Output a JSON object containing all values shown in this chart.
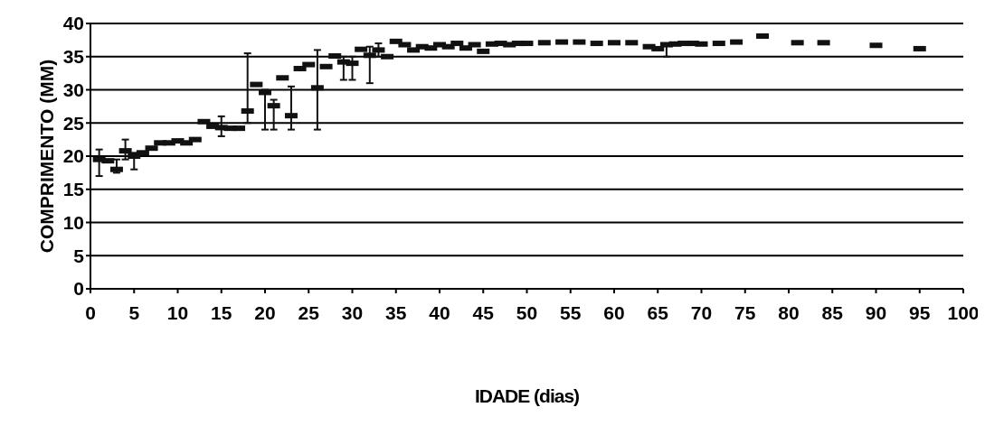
{
  "chart_data": {
    "type": "scatter",
    "xlabel": "IDADE (dias)",
    "ylabel": "COMPRIMENTO (MM)",
    "x": [
      1,
      2,
      3,
      4,
      5,
      6,
      7,
      8,
      9,
      10,
      11,
      12,
      13,
      14,
      15,
      16,
      17,
      18,
      19,
      20,
      21,
      22,
      23,
      24,
      25,
      26,
      27,
      28,
      29,
      30,
      31,
      32,
      33,
      34,
      35,
      36,
      37,
      38,
      39,
      40,
      41,
      42,
      43,
      44,
      45,
      46,
      47,
      48,
      49,
      50,
      52,
      54,
      56,
      58,
      60,
      62,
      64,
      65,
      66,
      67,
      68,
      69,
      70,
      72,
      74,
      77,
      81,
      84,
      90,
      95
    ],
    "series": [
      {
        "color": "#111111",
        "values": [
          19.5,
          19.3,
          18,
          20.8,
          20,
          20.5,
          21.2,
          22,
          22,
          22.3,
          22,
          22.5,
          25.2,
          24.5,
          24.3,
          24.2,
          24.2,
          26.8,
          30.8,
          29.6,
          27.6,
          31.8,
          26.1,
          33.2,
          33.8,
          30.3,
          33.5,
          35.1,
          34.2,
          34,
          36.1,
          35.2,
          36,
          35,
          37.3,
          36.8,
          36,
          36.5,
          36.3,
          36.8,
          36.5,
          37,
          36.3,
          36.8,
          35.8,
          36.9,
          37,
          36.8,
          37,
          37,
          37.1,
          37.2,
          37.2,
          37,
          37.1,
          37.1,
          36.5,
          36.2,
          36.8,
          36.9,
          37,
          37,
          36.9,
          37,
          37.2,
          38.1,
          37.1,
          37.1,
          36.7,
          36.2
        ],
        "errors": [
          [
            17,
            21
          ],
          null,
          [
            17.5,
            19.5
          ],
          [
            19.5,
            22.5
          ],
          [
            18,
            20.5
          ],
          null,
          null,
          null,
          null,
          null,
          null,
          null,
          null,
          null,
          [
            23,
            26
          ],
          null,
          null,
          [
            25,
            35.5
          ],
          null,
          [
            24,
            30
          ],
          [
            24,
            28.5
          ],
          null,
          [
            24,
            30.5
          ],
          null,
          null,
          [
            24,
            36
          ],
          null,
          null,
          [
            31.5,
            35
          ],
          [
            31.5,
            35
          ],
          null,
          [
            31,
            36.5
          ],
          [
            35,
            37
          ],
          null,
          null,
          null,
          null,
          null,
          null,
          null,
          null,
          null,
          null,
          null,
          null,
          null,
          null,
          null,
          null,
          null,
          null,
          null,
          null,
          null,
          null,
          null,
          null,
          null,
          [
            35,
            37
          ],
          null,
          null,
          null,
          null,
          null,
          null,
          null,
          null,
          null,
          null,
          null
        ]
      }
    ],
    "xlim": [
      0,
      100
    ],
    "xticks": [
      0,
      5,
      10,
      15,
      20,
      25,
      30,
      35,
      40,
      45,
      50,
      55,
      60,
      65,
      70,
      75,
      80,
      85,
      90,
      95,
      100
    ],
    "ylim": [
      0,
      40
    ],
    "yticks": [
      0,
      5,
      10,
      15,
      20,
      25,
      30,
      35,
      40
    ],
    "grid": "y",
    "marker": "square"
  }
}
